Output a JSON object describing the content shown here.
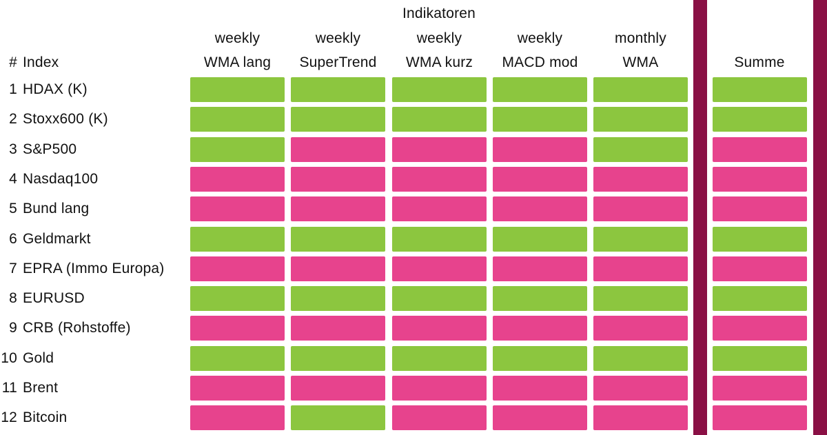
{
  "title": "Indikatoren",
  "colors": {
    "green": "#8CC63F",
    "pink": "#E7438D",
    "maroon": "#8A1045"
  },
  "header": {
    "hash": "#",
    "index_label": "Index",
    "summe_label": "Summe",
    "columns": [
      {
        "line1": "weekly",
        "line2": "WMA lang"
      },
      {
        "line1": "weekly",
        "line2": "SuperTrend"
      },
      {
        "line1": "weekly",
        "line2": "WMA kurz"
      },
      {
        "line1": "weekly",
        "line2": "MACD mod"
      },
      {
        "line1": "monthly",
        "line2": "WMA"
      }
    ]
  },
  "rows": [
    {
      "num": "1",
      "name": "HDAX (K)",
      "cells": [
        "green",
        "green",
        "green",
        "green",
        "green"
      ],
      "summe": "green"
    },
    {
      "num": "2",
      "name": "Stoxx600 (K)",
      "cells": [
        "green",
        "green",
        "green",
        "green",
        "green"
      ],
      "summe": "green"
    },
    {
      "num": "3",
      "name": "S&P500",
      "cells": [
        "green",
        "pink",
        "pink",
        "pink",
        "green"
      ],
      "summe": "pink"
    },
    {
      "num": "4",
      "name": "Nasdaq100",
      "cells": [
        "pink",
        "pink",
        "pink",
        "pink",
        "pink"
      ],
      "summe": "pink"
    },
    {
      "num": "5",
      "name": "Bund lang",
      "cells": [
        "pink",
        "pink",
        "pink",
        "pink",
        "pink"
      ],
      "summe": "pink"
    },
    {
      "num": "6",
      "name": "Geldmarkt",
      "cells": [
        "green",
        "green",
        "green",
        "green",
        "green"
      ],
      "summe": "green"
    },
    {
      "num": "7",
      "name": "EPRA (Immo Europa)",
      "cells": [
        "pink",
        "pink",
        "pink",
        "pink",
        "pink"
      ],
      "summe": "pink"
    },
    {
      "num": "8",
      "name": "EURUSD",
      "cells": [
        "green",
        "green",
        "green",
        "green",
        "green"
      ],
      "summe": "green"
    },
    {
      "num": "9",
      "name": "CRB (Rohstoffe)",
      "cells": [
        "pink",
        "pink",
        "pink",
        "pink",
        "pink"
      ],
      "summe": "pink"
    },
    {
      "num": "10",
      "name": "Gold",
      "cells": [
        "green",
        "green",
        "green",
        "green",
        "green"
      ],
      "summe": "green"
    },
    {
      "num": "11",
      "name": "Brent",
      "cells": [
        "pink",
        "pink",
        "pink",
        "pink",
        "pink"
      ],
      "summe": "pink"
    },
    {
      "num": "12",
      "name": "Bitcoin",
      "cells": [
        "pink",
        "green",
        "pink",
        "pink",
        "pink"
      ],
      "summe": "pink"
    }
  ],
  "chart_data": {
    "type": "heatmap",
    "title": "Indikatoren",
    "columns": [
      "weekly WMA lang",
      "weekly SuperTrend",
      "weekly WMA kurz",
      "weekly MACD mod",
      "monthly WMA",
      "Summe"
    ],
    "rows": [
      "HDAX (K)",
      "Stoxx600 (K)",
      "S&P500",
      "Nasdaq100",
      "Bund lang",
      "Geldmarkt",
      "EPRA (Immo Europa)",
      "EURUSD",
      "CRB (Rohstoffe)",
      "Gold",
      "Brent",
      "Bitcoin"
    ],
    "values": [
      [
        "green",
        "green",
        "green",
        "green",
        "green",
        "green"
      ],
      [
        "green",
        "green",
        "green",
        "green",
        "green",
        "green"
      ],
      [
        "green",
        "pink",
        "pink",
        "pink",
        "green",
        "pink"
      ],
      [
        "pink",
        "pink",
        "pink",
        "pink",
        "pink",
        "pink"
      ],
      [
        "pink",
        "pink",
        "pink",
        "pink",
        "pink",
        "pink"
      ],
      [
        "green",
        "green",
        "green",
        "green",
        "green",
        "green"
      ],
      [
        "pink",
        "pink",
        "pink",
        "pink",
        "pink",
        "pink"
      ],
      [
        "green",
        "green",
        "green",
        "green",
        "green",
        "green"
      ],
      [
        "pink",
        "pink",
        "pink",
        "pink",
        "pink",
        "pink"
      ],
      [
        "green",
        "green",
        "green",
        "green",
        "green",
        "green"
      ],
      [
        "pink",
        "pink",
        "pink",
        "pink",
        "pink",
        "pink"
      ],
      [
        "pink",
        "green",
        "pink",
        "pink",
        "pink",
        "pink"
      ]
    ],
    "color_scale": {
      "green": "#8CC63F",
      "pink": "#E7438D"
    },
    "legend_position": "none",
    "grid": false
  }
}
